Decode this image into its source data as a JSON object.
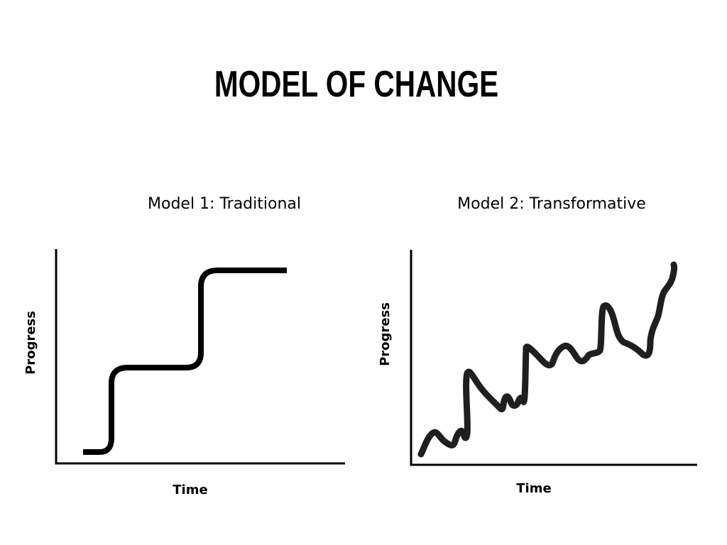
{
  "title": "MODEL OF CHANGE",
  "models": [
    {
      "title": "Model 1: Traditional",
      "xlabel": "Time",
      "ylabel": "Progress"
    },
    {
      "title": "Model 2:  Transformative",
      "xlabel": "Time",
      "ylabel": "Progress"
    }
  ],
  "colors": {
    "ink": "#000000",
    "curve_1": "#000000",
    "curve_2": "#1f1f1f",
    "background": "#ffffff"
  }
}
